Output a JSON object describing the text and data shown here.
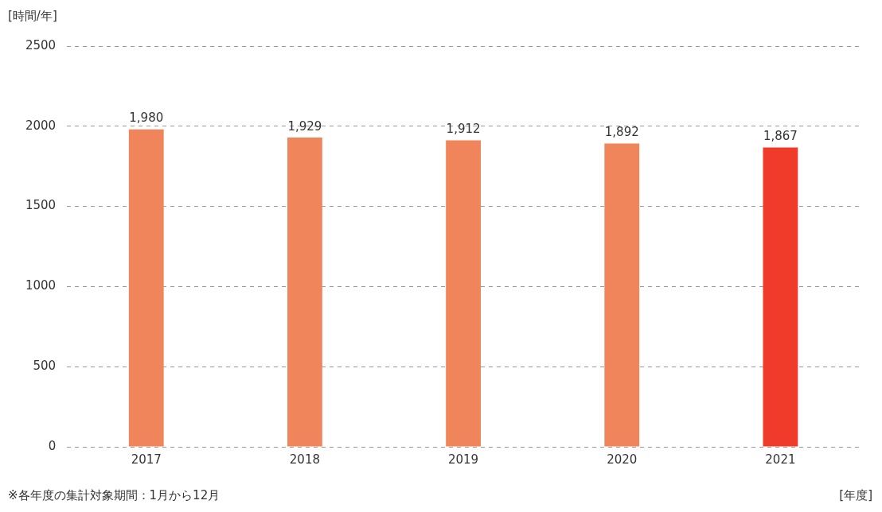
{
  "chart_data": {
    "type": "bar",
    "ylabel": "[時間/年]",
    "xlabel": "[年度]",
    "categories": [
      "2017",
      "2018",
      "2019",
      "2020",
      "2021"
    ],
    "values": [
      1980,
      1929,
      1912,
      1892,
      1867
    ],
    "colors": [
      "#f0845a",
      "#f0845a",
      "#f0845a",
      "#f0845a",
      "#f03a2a"
    ],
    "value_labels": [
      "1,980",
      "1,929",
      "1,912",
      "1,892",
      "1,867"
    ],
    "ylim": [
      0,
      2500
    ],
    "yticks": [
      0,
      500,
      1000,
      1500,
      2000,
      2500
    ],
    "grid": "y",
    "annotations": [
      "※各年度の集計対象期間：1月から12月"
    ]
  }
}
